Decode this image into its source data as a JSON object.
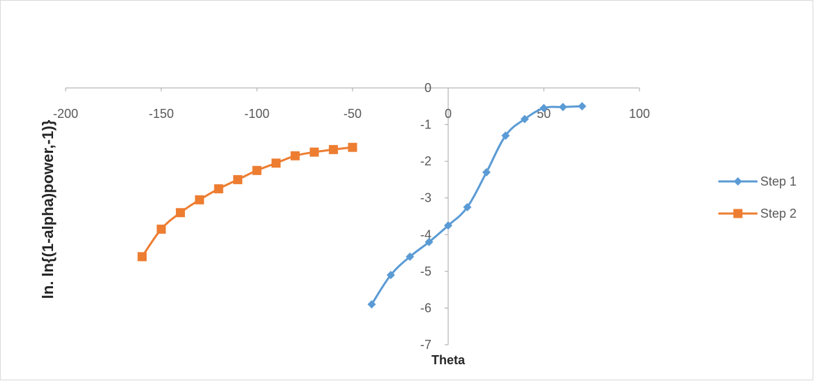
{
  "chart_data": {
    "type": "line",
    "title": "",
    "xlabel": "Theta",
    "ylabel": "ln. ln{(1-alpha)power,-1)}",
    "xlim": [
      -200,
      100
    ],
    "ylim": [
      -7,
      0
    ],
    "xticks": [
      -200,
      -150,
      -100,
      -50,
      0,
      50,
      100
    ],
    "yticks": [
      0,
      -1,
      -2,
      -3,
      -4,
      -5,
      -6,
      -7
    ],
    "grid": false,
    "legend_position": "right",
    "series": [
      {
        "name": "Step 1",
        "color": "#5b9bd5",
        "marker": "diamond",
        "smooth": true,
        "x": [
          -40,
          -30,
          -20,
          -10,
          0,
          10,
          20,
          30,
          40,
          50,
          60,
          70
        ],
        "y": [
          -5.9,
          -5.1,
          -4.6,
          -4.2,
          -3.75,
          -3.25,
          -2.3,
          -1.3,
          -0.85,
          -0.55,
          -0.52,
          -0.5
        ]
      },
      {
        "name": "Step 2",
        "color": "#ed7d31",
        "marker": "square",
        "smooth": true,
        "x": [
          -160,
          -150,
          -140,
          -130,
          -120,
          -110,
          -100,
          -90,
          -80,
          -70,
          -60,
          -50
        ],
        "y": [
          -4.6,
          -3.85,
          -3.4,
          -3.05,
          -2.75,
          -2.5,
          -2.25,
          -2.05,
          -1.85,
          -1.75,
          -1.68,
          -1.62
        ]
      }
    ]
  }
}
